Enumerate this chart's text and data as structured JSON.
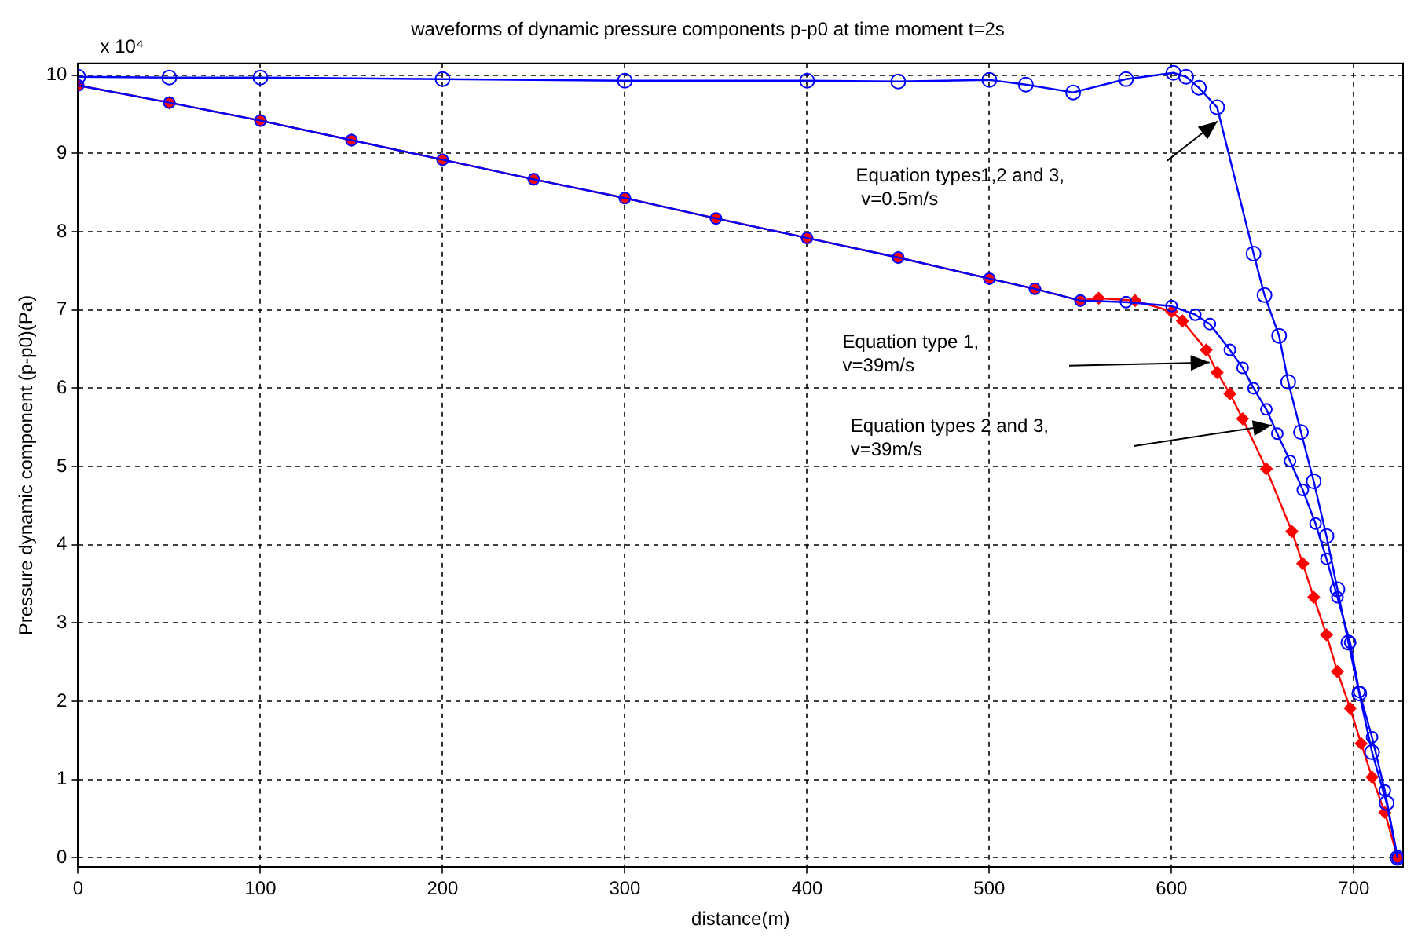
{
  "chart_data": {
    "type": "line",
    "title": "waveforms of dynamic pressure components p-p0 at time moment t=2s",
    "xlabel": "distance(m)",
    "ylabel": "Pressure dynamic component (p-p0)(Pa)",
    "xlim": [
      0,
      727
    ],
    "xticks": [
      0,
      100,
      200,
      300,
      400,
      500,
      600,
      700
    ],
    "ylim": [
      -0.12,
      10.15
    ],
    "yticks": [
      0,
      1,
      2,
      3,
      4,
      5,
      6,
      7,
      8,
      9,
      10
    ],
    "grid": true,
    "legend": false,
    "line_style": "solid",
    "series": [
      {
        "color": "#0000ff",
        "marker": "circle",
        "x": [
          0,
          50,
          100,
          200,
          300,
          400,
          450,
          500,
          520,
          546,
          575,
          601,
          608,
          615,
          625,
          645,
          651,
          659,
          664,
          671,
          678,
          685,
          691,
          697,
          703,
          710,
          718,
          724
        ],
        "values": [
          9.98,
          9.97,
          9.97,
          9.95,
          9.93,
          9.93,
          9.92,
          9.94,
          9.88,
          9.78,
          9.95,
          10.03,
          9.98,
          9.84,
          9.59,
          7.72,
          7.19,
          6.67,
          6.08,
          5.44,
          4.81,
          4.11,
          3.43,
          2.75,
          2.1,
          1.35,
          0.7,
          0
        ]
      },
      {
        "color": "#0000ff",
        "marker": "circle",
        "x": [
          0,
          50,
          100,
          150,
          200,
          250,
          300,
          350,
          400,
          450,
          500,
          525,
          550,
          575,
          600,
          613,
          621,
          632,
          639,
          645,
          652,
          658,
          665,
          672,
          679,
          685,
          691,
          698,
          703,
          710,
          717,
          724
        ],
        "values": [
          9.87,
          9.65,
          9.42,
          9.17,
          8.92,
          8.67,
          8.43,
          8.17,
          7.92,
          7.67,
          7.4,
          7.27,
          7.12,
          7.1,
          7.05,
          6.94,
          6.82,
          6.49,
          6.26,
          6.0,
          5.73,
          5.42,
          5.07,
          4.7,
          4.27,
          3.82,
          3.33,
          2.75,
          2.12,
          1.54,
          0.86,
          0
        ]
      },
      {
        "color": "#ff0000",
        "marker": "diamond",
        "x": [
          0,
          50,
          100,
          150,
          200,
          250,
          300,
          350,
          400,
          450,
          500,
          525,
          550,
          560,
          580,
          600,
          606,
          619,
          625,
          632,
          639,
          652,
          666,
          672,
          678,
          685,
          691,
          698,
          704,
          710,
          717,
          724
        ],
        "values": [
          9.87,
          9.65,
          9.42,
          9.17,
          8.92,
          8.67,
          8.43,
          8.17,
          7.92,
          7.67,
          7.4,
          7.27,
          7.12,
          7.15,
          7.12,
          6.98,
          6.86,
          6.49,
          6.2,
          5.93,
          5.61,
          4.97,
          4.17,
          3.76,
          3.33,
          2.85,
          2.38,
          1.91,
          1.46,
          1.03,
          0.58,
          0
        ]
      }
    ],
    "annotations": [
      "x 10⁴",
      "Equation types1,2 and 3,\n v=0.5m/s",
      "Equation type 1,\nv=39m/s",
      "Equation types 2 and 3,\nv=39m/s"
    ]
  }
}
